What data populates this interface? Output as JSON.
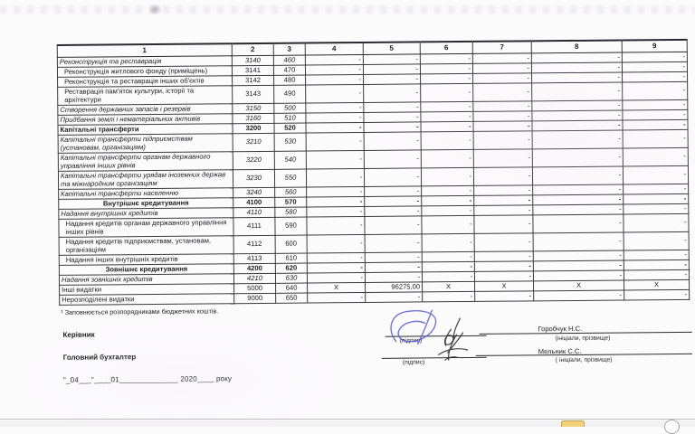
{
  "document": {
    "table": {
      "header": [
        "1",
        "2",
        "3",
        "4",
        "5",
        "6",
        "7",
        "8",
        "9"
      ],
      "rows": [
        {
          "label": "Реконструкція  та  реставрація",
          "code": "3140",
          "kekv": "460",
          "style": "italic",
          "indent": false,
          "tall": false,
          "heavy": true,
          "values": [
            "-",
            "-",
            "-",
            "-",
            "-",
            "-"
          ]
        },
        {
          "label": "Реконструкція житлового фонду (приміщень)",
          "code": "3141",
          "kekv": "470",
          "style": "normal",
          "indent": true,
          "tall": false,
          "heavy": false,
          "values": [
            "-",
            "-",
            "-",
            "-",
            "-",
            "-"
          ]
        },
        {
          "label": "Реконструкція та реставрація інших об'єктів",
          "code": "3142",
          "kekv": "480",
          "style": "normal",
          "indent": true,
          "tall": false,
          "heavy": false,
          "values": [
            "-",
            "-",
            "-",
            "-",
            "-",
            "-"
          ]
        },
        {
          "label": "Реставрація пам'яток культури, історії та архітектури",
          "code": "3143",
          "kekv": "490",
          "style": "normal",
          "indent": true,
          "tall": true,
          "heavy": false,
          "values": [
            "-",
            "-",
            "-",
            "-",
            "-",
            "-"
          ]
        },
        {
          "label": "Створення державних запасів і резервів",
          "code": "3150",
          "kekv": "500",
          "style": "italic",
          "indent": false,
          "tall": false,
          "heavy": true,
          "values": [
            "-",
            "-",
            "-",
            "-",
            "-",
            "-"
          ]
        },
        {
          "label": "Придбання землі і нематеріальних активів",
          "code": "3160",
          "kekv": "510",
          "style": "italic",
          "indent": false,
          "tall": false,
          "heavy": true,
          "values": [
            "-",
            "-",
            "-",
            "-",
            "-",
            "-"
          ]
        },
        {
          "label": "Капітальні трансферти",
          "code": "3200",
          "kekv": "520",
          "style": "bold",
          "indent": false,
          "tall": false,
          "heavy": true,
          "values": [
            "-",
            "-",
            "-",
            "-",
            "-",
            "-"
          ]
        },
        {
          "label": "Капітальні трансферти підприємствам (установам, організаціям)",
          "code": "3210",
          "kekv": "530",
          "style": "italic",
          "indent": false,
          "tall": true,
          "heavy": true,
          "values": [
            "-",
            "-",
            "-",
            "-",
            "-",
            "-"
          ]
        },
        {
          "label": "Капітальні трансферти органам державного управління інших рівнів",
          "code": "3220",
          "kekv": "540",
          "style": "italic",
          "indent": false,
          "tall": true,
          "heavy": true,
          "values": [
            "-",
            "-",
            "-",
            "-",
            "-",
            "-"
          ]
        },
        {
          "label": "Капітальні трансферти урядам іноземних держав та міжнародним організаціям",
          "code": "3230",
          "kekv": "550",
          "style": "italic",
          "indent": false,
          "tall": true,
          "heavy": true,
          "values": [
            "-",
            "-",
            "-",
            "-",
            "-",
            "-"
          ]
        },
        {
          "label": "Капітальні трансферти населенню",
          "code": "3240",
          "kekv": "560",
          "style": "italic",
          "indent": false,
          "tall": false,
          "heavy": true,
          "values": [
            "-",
            "-",
            "-",
            "-",
            "-",
            "-"
          ]
        },
        {
          "label": "Внутрішнє кредитування",
          "code": "4100",
          "kekv": "570",
          "style": "bold-center",
          "indent": false,
          "tall": false,
          "heavy": true,
          "values": [
            "-",
            "-",
            "-",
            "-",
            "-",
            "-"
          ]
        },
        {
          "label": "Надання внутрішніх кредитів",
          "code": "4110",
          "kekv": "580",
          "style": "italic",
          "indent": false,
          "tall": false,
          "heavy": true,
          "values": [
            "-",
            "-",
            "-",
            "-",
            "-",
            "-"
          ]
        },
        {
          "label": "Надання кредитів органам державного управління інших рівнів",
          "code": "4111",
          "kekv": "590",
          "style": "normal",
          "indent": true,
          "tall": true,
          "heavy": false,
          "values": [
            "-",
            "-",
            "-",
            "-",
            "-",
            "-"
          ]
        },
        {
          "label": "Надання кредитів підприємствам, установам, організаціям",
          "code": "4112",
          "kekv": "600",
          "style": "normal",
          "indent": true,
          "tall": true,
          "heavy": false,
          "values": [
            "-",
            "-",
            "-",
            "-",
            "-",
            "-"
          ]
        },
        {
          "label": "Надання інших внутрішніх кредитів",
          "code": "4113",
          "kekv": "610",
          "style": "normal",
          "indent": true,
          "tall": false,
          "heavy": false,
          "values": [
            "-",
            "-",
            "-",
            "-",
            "-",
            "-"
          ]
        },
        {
          "label": "Зовнішнє кредитування",
          "code": "4200",
          "kekv": "620",
          "style": "bold-center",
          "indent": false,
          "tall": false,
          "heavy": true,
          "values": [
            "-",
            "-",
            "-",
            "-",
            "-",
            "-"
          ]
        },
        {
          "label": "Надання зовнішніх кредитів",
          "code": "4210",
          "kekv": "630",
          "style": "italic",
          "indent": false,
          "tall": false,
          "heavy": true,
          "values": [
            "-",
            "-",
            "-",
            "-",
            "-",
            "-"
          ]
        },
        {
          "label": "Інші видатки",
          "code": "5000",
          "kekv": "640",
          "style": "normal",
          "indent": false,
          "tall": false,
          "heavy": true,
          "values": [
            "X",
            "96275,00",
            "X",
            "X",
            "X",
            "X"
          ]
        },
        {
          "label": "Нерозподілені видатки",
          "code": "9000",
          "kekv": "650",
          "style": "normal",
          "indent": false,
          "tall": false,
          "heavy": true,
          "values": [
            "-",
            "-",
            "-",
            "-",
            "-",
            "-"
          ]
        }
      ]
    },
    "footnote": "¹ Заповнюється розпорядниками бюджетних коштів.",
    "footer": {
      "role_1": "Керівник",
      "role_2": "Головний бухгалтер",
      "date_line": "\"_04___\"____01______________ 2020____ року",
      "signature_hint_1": "(підпис)",
      "signature_hint_2": "(підпис)",
      "name_1": "Горобчук Н.С.",
      "name_hint_1": "(ініціали, прізвище)",
      "name_2": "Мельник С.С.",
      "name_hint_2": "( ініціали, прізвище)"
    },
    "icons": {
      "blue_signature": "handwritten-signature-blue-ink",
      "dark_signature": "handwritten-signature-dark-ink"
    },
    "colors": {
      "paper": "#fcfbfc",
      "table_border": "#3a3a40",
      "signature_blue": "#5c5cc8",
      "signature_ink": "#2e2e36",
      "taskbar_button_yellow": "#f1d27b"
    }
  }
}
